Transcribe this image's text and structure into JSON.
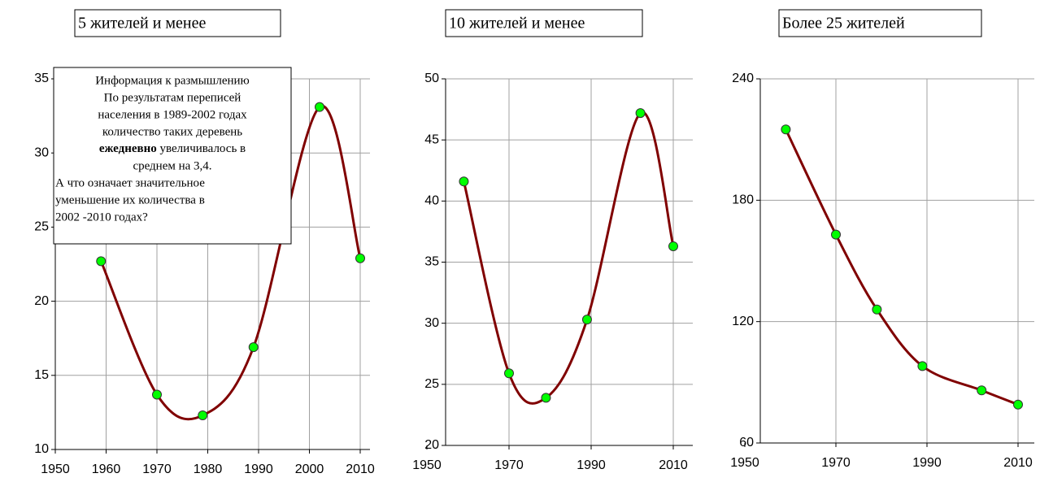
{
  "chart_data": [
    {
      "type": "scatter",
      "title": "5 жителей и менее",
      "x": [
        1959,
        1970,
        1979,
        1989,
        2002,
        2010
      ],
      "values": [
        22.7,
        13.7,
        12.3,
        16.9,
        33.1,
        22.9
      ],
      "xlim": [
        1950,
        2010
      ],
      "xticks": [
        1950,
        1960,
        1970,
        1980,
        1990,
        2000,
        2010
      ],
      "ylim": [
        10,
        35
      ],
      "yticks": [
        10,
        15,
        20,
        25,
        30,
        35
      ],
      "grid": true,
      "color": "#00ff00",
      "trend_color": "#800000",
      "annotation": [
        "Информация к размышлению",
        "По результатам переписей",
        "населения в 1989-2002 годах",
        "количество таких деревень",
        [
          "ежедневно",
          " увеличивалось в"
        ],
        "среднем на 3,4.",
        "А что означает значительное",
        "уменьшение их количества в",
        "2002 -2010 годах?"
      ]
    },
    {
      "type": "scatter",
      "title": "10 жителей и менее",
      "x": [
        1959,
        1970,
        1979,
        1989,
        2002,
        2010
      ],
      "values": [
        41.6,
        25.9,
        23.9,
        30.3,
        47.2,
        36.3
      ],
      "xlim": [
        1950,
        2010
      ],
      "xticks": [
        1950,
        1970,
        1990,
        2010
      ],
      "ylim": [
        20,
        50
      ],
      "yticks": [
        20,
        25,
        30,
        35,
        40,
        45,
        50
      ],
      "grid": true,
      "color": "#00ff00",
      "trend_color": "#800000"
    },
    {
      "type": "scatter",
      "title": "Более 25 жителей",
      "x": [
        1959,
        1970,
        1979,
        1989,
        2002,
        2010
      ],
      "values": [
        215,
        163,
        126,
        98,
        86,
        79
      ],
      "xlim": [
        1950,
        2010
      ],
      "xticks": [
        1950,
        1970,
        1990,
        2010
      ],
      "ylim": [
        60,
        240
      ],
      "yticks": [
        60,
        120,
        180,
        240
      ],
      "grid": true,
      "color": "#00ff00",
      "trend_color": "#800000"
    }
  ]
}
